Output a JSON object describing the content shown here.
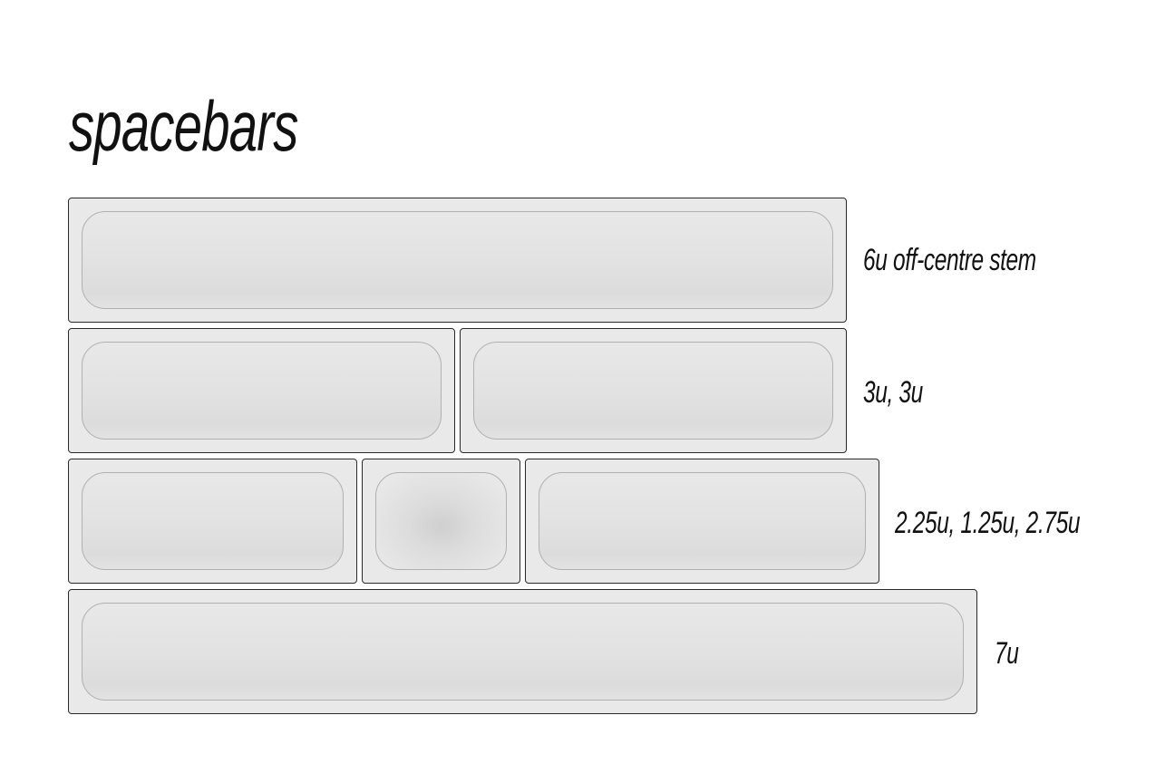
{
  "title": "spacebars",
  "rows": [
    {
      "label": "6u off-centre stem"
    },
    {
      "label": "3u, 3u"
    },
    {
      "label": "2.25u, 1.25u, 2.75u"
    },
    {
      "label": "7u"
    }
  ]
}
